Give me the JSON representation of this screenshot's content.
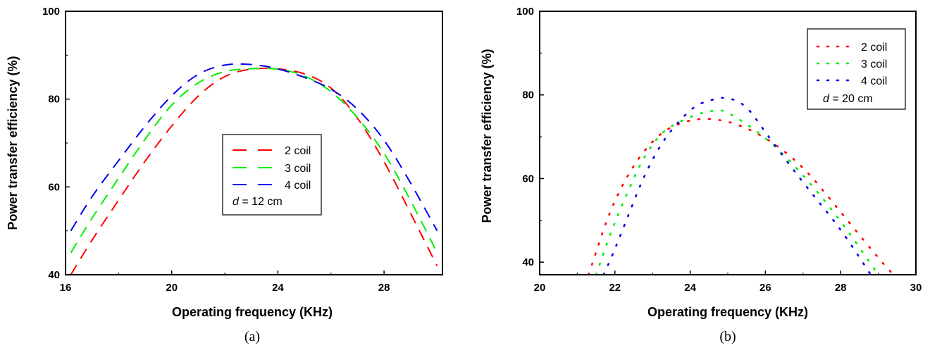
{
  "charts": [
    {
      "caption": "(a)",
      "type": "line",
      "xlabel": "Operating frequency (KHz)",
      "ylabel": "Power transfer efficiency (%)",
      "xlim": [
        16,
        30.2
      ],
      "ylim": [
        40,
        100
      ],
      "xticks": [
        16,
        20,
        24,
        28
      ],
      "yticks": [
        40,
        60,
        80,
        100
      ],
      "line_style": "dashed",
      "legend": {
        "position": "center-right",
        "entries": [
          "2 coil",
          "3 coil",
          "4 coil"
        ],
        "note_italic": "d",
        "note_rest": " = 12 cm"
      },
      "series": [
        {
          "name": "2 coil",
          "color": "#ff0000",
          "x": [
            16.2,
            17,
            18,
            19,
            20,
            21,
            22,
            23,
            24,
            25,
            26,
            27,
            28,
            29,
            30
          ],
          "y": [
            40,
            48,
            57,
            66,
            74,
            81,
            85.5,
            87,
            87,
            86,
            83,
            76,
            66,
            54,
            42
          ]
        },
        {
          "name": "3 coil",
          "color": "#00ee00",
          "x": [
            16.2,
            17,
            18,
            19,
            20,
            21,
            22,
            23,
            24,
            25,
            26,
            27,
            28,
            29,
            30
          ],
          "y": [
            45,
            53,
            62,
            71,
            79,
            84,
            86.5,
            87,
            87,
            85.5,
            82,
            76,
            68,
            57,
            45
          ]
        },
        {
          "name": "4 coil",
          "color": "#0000ee",
          "x": [
            16.2,
            17,
            18,
            19,
            20,
            21,
            22,
            23,
            24,
            25,
            26,
            27,
            28,
            29,
            30
          ],
          "y": [
            50,
            58,
            66,
            74,
            81,
            86,
            88,
            88,
            87,
            85,
            82.5,
            78,
            71,
            61,
            50
          ]
        }
      ]
    },
    {
      "caption": "(b)",
      "type": "line",
      "xlabel": "Operating frequency (KHz)",
      "ylabel": "Power transfer efficiency (%)",
      "xlim": [
        20,
        30
      ],
      "ylim": [
        37,
        100
      ],
      "xticks": [
        20,
        22,
        24,
        26,
        28,
        30
      ],
      "yticks": [
        40,
        60,
        80,
        100
      ],
      "line_style": "dotted",
      "legend": {
        "position": "top-right",
        "entries": [
          "2 coil",
          "3 coil",
          "4 coil"
        ],
        "note_italic": "d",
        "note_rest": " = 20 cm"
      },
      "series": [
        {
          "name": "2 coil",
          "color": "#ff0000",
          "x": [
            21.3,
            22,
            23,
            24,
            25,
            26,
            27,
            28,
            29,
            29.4
          ],
          "y": [
            37,
            56,
            70,
            74.5,
            74,
            70,
            63,
            52,
            41,
            37
          ]
        },
        {
          "name": "3 coil",
          "color": "#00ee00",
          "x": [
            21.5,
            22,
            23,
            24,
            24.7,
            25,
            26,
            27,
            28,
            29
          ],
          "y": [
            37,
            50,
            70,
            75,
            76.5,
            76,
            70,
            61,
            50,
            37
          ]
        },
        {
          "name": "4 coil",
          "color": "#0000ee",
          "x": [
            21.7,
            22,
            23,
            24,
            24.6,
            25,
            25.5,
            26,
            27,
            28,
            28.8
          ],
          "y": [
            37,
            43,
            66,
            77,
            79,
            79.5,
            77.5,
            71,
            59,
            48,
            37
          ]
        }
      ]
    }
  ]
}
